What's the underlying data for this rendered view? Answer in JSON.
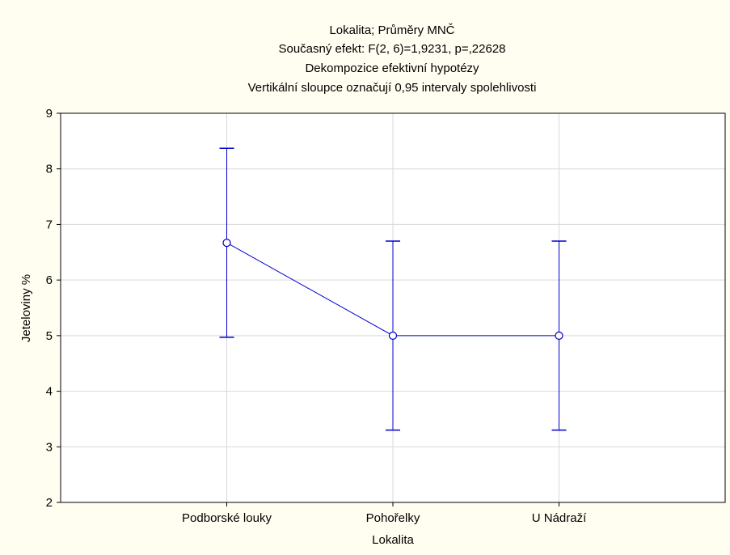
{
  "chart_data": {
    "type": "line",
    "title_lines": [
      "Lokalita; Průměry MNČ",
      "Současný efekt: F(2, 6)=1,9231, p=,22628",
      "Dekompozice efektivní hypotézy",
      "Vertikální sloupce označují 0,95 intervaly spolehlivosti"
    ],
    "xlabel": "Lokalita",
    "ylabel": "Jeteloviny %",
    "categories": [
      "Podborské louky",
      "Pohořelky",
      "U Nádraží"
    ],
    "values": [
      6.67,
      5.0,
      5.0
    ],
    "ci_lower": [
      4.97,
      3.3,
      3.3
    ],
    "ci_upper": [
      8.37,
      6.7,
      6.7
    ],
    "ylim": [
      2,
      9
    ],
    "yticks": [
      2,
      3,
      4,
      5,
      6,
      7,
      8,
      9
    ],
    "grid": true,
    "colors": {
      "series": "#0000cc",
      "background": "#fffef0",
      "plot_bg": "#ffffff",
      "grid": "#d9d9d9"
    }
  }
}
